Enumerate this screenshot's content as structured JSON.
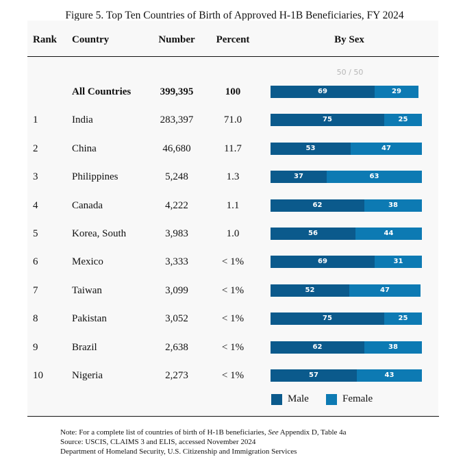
{
  "title": "Figure 5. Top Ten Countries of Birth of Approved H-1B Beneficiaries, FY 2024",
  "headers": {
    "rank": "Rank",
    "country": "Country",
    "number": "Number",
    "percent": "Percent",
    "by_sex": "By Sex"
  },
  "chart_data": {
    "type": "bar",
    "subtype": "stacked-horizontal-100",
    "scale_label": "50 / 50",
    "series_names": [
      "Male",
      "Female"
    ],
    "colors": {
      "Male": "#0b5a8c",
      "Female": "#0d7ab3"
    },
    "rows": [
      {
        "rank": "",
        "country": "All Countries",
        "number": "399,395",
        "percent": "100",
        "male": 69,
        "female": 29,
        "total": true
      },
      {
        "rank": "1",
        "country": "India",
        "number": "283,397",
        "percent": "71.0",
        "male": 75,
        "female": 25
      },
      {
        "rank": "2",
        "country": "China",
        "number": "46,680",
        "percent": "11.7",
        "male": 53,
        "female": 47
      },
      {
        "rank": "3",
        "country": "Philippines",
        "number": "5,248",
        "percent": "1.3",
        "male": 37,
        "female": 63
      },
      {
        "rank": "4",
        "country": "Canada",
        "number": "4,222",
        "percent": "1.1",
        "male": 62,
        "female": 38
      },
      {
        "rank": "5",
        "country": "Korea, South",
        "number": "3,983",
        "percent": "1.0",
        "male": 56,
        "female": 44
      },
      {
        "rank": "6",
        "country": "Mexico",
        "number": "3,333",
        "percent": "< 1%",
        "male": 69,
        "female": 31
      },
      {
        "rank": "7",
        "country": "Taiwan",
        "number": "3,099",
        "percent": "< 1%",
        "male": 52,
        "female": 47
      },
      {
        "rank": "8",
        "country": "Pakistan",
        "number": "3,052",
        "percent": "< 1%",
        "male": 75,
        "female": 25
      },
      {
        "rank": "9",
        "country": "Brazil",
        "number": "2,638",
        "percent": "< 1%",
        "male": 62,
        "female": 38
      },
      {
        "rank": "10",
        "country": "Nigeria",
        "number": "2,273",
        "percent": "< 1%",
        "male": 57,
        "female": 43
      }
    ]
  },
  "legend": {
    "male": "Male",
    "female": "Female"
  },
  "notes": {
    "line1_prefix": "Note: For a complete list of countries of birth of H-1B beneficiaries, ",
    "line1_see": "See",
    "line1_suffix": " Appendix D, Table 4a",
    "line2": "Source: USCIS, CLAIMS 3 and ELIS, accessed November 2024",
    "line3": "Department of Homeland Security, U.S. Citizenship and Immigration Services"
  }
}
